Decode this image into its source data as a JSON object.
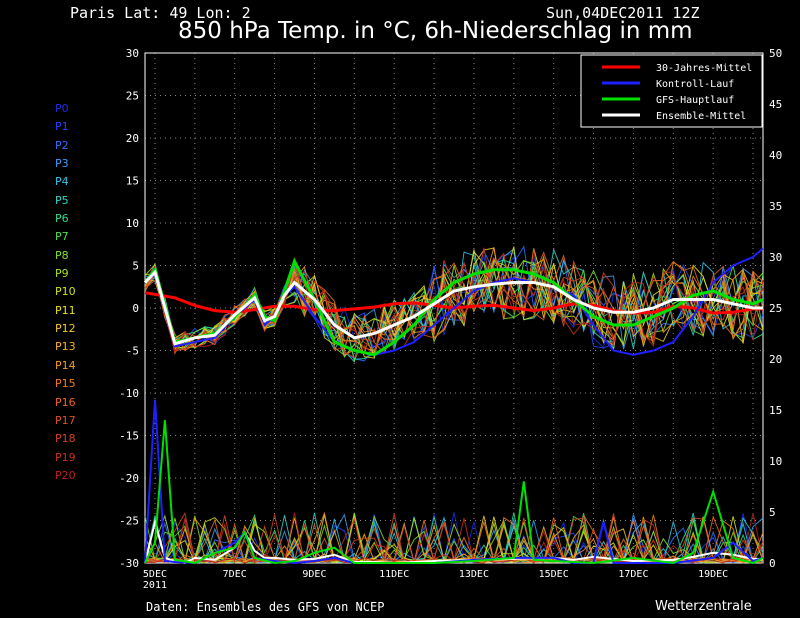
{
  "header": {
    "location": "Paris  Lat: 49 Lon: 2",
    "datetime": "Sun,04DEC2011 12Z",
    "title": "850 hPa Temp. in °C, 6h-Niederschlag in mm"
  },
  "footer": {
    "source": "Daten: Ensembles des GFS von NCEP",
    "brand": "Wetterzentrale"
  },
  "members": [
    {
      "label": "P0",
      "color": "#1a2ee8"
    },
    {
      "label": "P1",
      "color": "#2244ff"
    },
    {
      "label": "P2",
      "color": "#2d6cff"
    },
    {
      "label": "P3",
      "color": "#3a9cf5"
    },
    {
      "label": "P4",
      "color": "#33c3e6"
    },
    {
      "label": "P5",
      "color": "#2fd6c4"
    },
    {
      "label": "P6",
      "color": "#2fdc8c"
    },
    {
      "label": "P7",
      "color": "#4ee04a"
    },
    {
      "label": "P8",
      "color": "#7ee02c"
    },
    {
      "label": "P9",
      "color": "#a8e022"
    },
    {
      "label": "P10",
      "color": "#cce01e"
    },
    {
      "label": "P11",
      "color": "#e6e01e"
    },
    {
      "label": "P12",
      "color": "#f0c81e"
    },
    {
      "label": "P13",
      "color": "#f5b01e"
    },
    {
      "label": "P14",
      "color": "#f59a1e"
    },
    {
      "label": "P15",
      "color": "#f07e1e"
    },
    {
      "label": "P16",
      "color": "#eb681e"
    },
    {
      "label": "P17",
      "color": "#e0521e"
    },
    {
      "label": "P18",
      "color": "#d6401e"
    },
    {
      "label": "P19",
      "color": "#c8301e"
    },
    {
      "label": "P20",
      "color": "#b8201e"
    }
  ],
  "chart_data": {
    "type": "line",
    "title": "850 hPa Temp. in °C, 6h-Niederschlag in mm",
    "x_ticks": [
      "5DEC",
      "7DEC",
      "9DEC",
      "11DEC",
      "13DEC",
      "15DEC",
      "17DEC",
      "19DEC"
    ],
    "x_tick_sublabel": "2011",
    "x_range_days": [
      4.75,
      20.25
    ],
    "y_left_range": [
      -30,
      30
    ],
    "y_left_ticks": [
      -30,
      -25,
      -20,
      -15,
      -10,
      -5,
      0,
      5,
      10,
      15,
      20,
      25,
      30
    ],
    "y_right_range": [
      0,
      50
    ],
    "y_right_ticks": [
      0,
      5,
      10,
      15,
      20,
      25,
      30,
      35,
      40,
      45,
      50
    ],
    "grid": true,
    "legend": {
      "placement": "top-right",
      "entries": [
        {
          "name": "30-Jahres-Mittel",
          "color": "#ff0000"
        },
        {
          "name": "Kontroll-Lauf",
          "color": "#1e1eff"
        },
        {
          "name": "GFS-Hauptlauf",
          "color": "#00e000"
        },
        {
          "name": "Ensemble-Mittel",
          "color": "#ffffff"
        }
      ]
    },
    "temperature_series": [
      {
        "name": "30-Jahres-Mittel",
        "color": "#ff0000",
        "width": 3,
        "x": [
          4.75,
          5.5,
          6,
          6.5,
          7,
          7.5,
          8,
          8.5,
          9,
          9.5,
          10,
          10.5,
          11,
          11.5,
          12,
          12.5,
          13,
          13.5,
          14,
          14.5,
          15,
          15.5,
          16,
          16.5,
          17,
          17.5,
          18,
          18.5,
          19,
          19.5,
          20,
          20.25
        ],
        "y": [
          1.8,
          1.2,
          0.3,
          -0.3,
          -0.5,
          -0.2,
          0.2,
          0.2,
          -0.2,
          -0.3,
          -0.1,
          0.1,
          0.5,
          0.6,
          0.3,
          0.0,
          0.2,
          0.3,
          0.0,
          -0.3,
          0.0,
          0.5,
          0.3,
          -0.3,
          -0.6,
          -0.5,
          0.2,
          0.0,
          -0.6,
          -0.5,
          -0.1,
          -0.1
        ]
      },
      {
        "name": "Kontroll-Lauf",
        "color": "#1e1eff",
        "width": 2,
        "x": [
          4.75,
          5,
          5.5,
          6,
          6.5,
          7,
          7.5,
          7.75,
          8,
          8.25,
          8.5,
          9,
          9.5,
          10,
          10.5,
          11,
          11.5,
          12,
          12.5,
          13,
          13.5,
          14,
          14.5,
          15,
          15.5,
          16,
          16.5,
          17,
          17.5,
          18,
          18.5,
          19,
          19.5,
          20,
          20.25
        ],
        "y": [
          3,
          4,
          -4.5,
          -4,
          -3.5,
          -1,
          1,
          -2,
          -1,
          1.5,
          2.5,
          -1,
          -4,
          -5,
          -5.5,
          -5,
          -4,
          -2,
          0,
          2,
          3,
          3.5,
          3,
          2.5,
          1.5,
          -2,
          -5,
          -5.5,
          -5,
          -4,
          -1,
          3,
          5,
          6,
          7
        ]
      },
      {
        "name": "GFS-Hauptlauf",
        "color": "#00e000",
        "width": 3,
        "x": [
          4.75,
          5,
          5.5,
          6,
          6.5,
          7,
          7.5,
          7.75,
          8,
          8.25,
          8.5,
          9,
          9.5,
          10,
          10.5,
          11,
          11.5,
          12,
          12.5,
          13,
          13.5,
          14,
          14.5,
          15,
          15.5,
          16,
          16.5,
          17,
          17.5,
          18,
          18.5,
          19,
          19.5,
          20,
          20.25
        ],
        "y": [
          3,
          4.5,
          -4,
          -3.5,
          -3,
          -1,
          1.5,
          -1,
          -1.5,
          2,
          5.5,
          1,
          -4,
          -5,
          -5.5,
          -4,
          -2,
          1,
          3,
          4,
          4.5,
          4.5,
          4,
          3,
          1,
          -1,
          -2,
          -2,
          -1,
          0,
          1.5,
          2,
          1,
          0.5,
          1
        ]
      },
      {
        "name": "Ensemble-Mittel",
        "color": "#ffffff",
        "width": 3,
        "x": [
          4.75,
          5,
          5.5,
          6,
          6.5,
          7,
          7.5,
          7.75,
          8,
          8.25,
          8.5,
          9,
          9.5,
          10,
          10.5,
          11,
          11.5,
          12,
          12.5,
          13,
          13.5,
          14,
          14.5,
          15,
          15.5,
          16,
          16.5,
          17,
          17.5,
          18,
          18.5,
          19,
          19.5,
          20,
          20.25
        ],
        "y": [
          3,
          4.2,
          -4.2,
          -3.5,
          -3.2,
          -0.8,
          1.2,
          -1.5,
          -1,
          1.5,
          3,
          1,
          -2,
          -3.5,
          -3,
          -2,
          -1,
          0.5,
          2,
          2.5,
          2.8,
          3,
          3,
          2.5,
          1,
          0,
          -0.5,
          -0.5,
          0,
          1,
          1,
          1,
          0.5,
          0,
          0
        ]
      }
    ],
    "precip_series": [
      {
        "name": "Ensemble-Mittel",
        "color": "#ffffff",
        "x": [
          4.75,
          5,
          5.25,
          5.5,
          5.75,
          6,
          6.5,
          7,
          7.25,
          7.5,
          7.75,
          8,
          8.5,
          9,
          9.5,
          10,
          10.5,
          11,
          12,
          13,
          14,
          15,
          15.5,
          16,
          17,
          18,
          18.5,
          19,
          19.5,
          20,
          20.25
        ],
        "y": [
          0,
          4,
          0.5,
          0.2,
          0,
          0.5,
          0.3,
          1.5,
          3,
          1.2,
          0.5,
          0.5,
          0.3,
          0.4,
          0.8,
          0.1,
          0.1,
          0,
          0.2,
          0.3,
          0.4,
          0.5,
          0.3,
          0.6,
          0.2,
          0.3,
          0.6,
          1,
          0.8,
          0.4,
          0.4
        ]
      },
      {
        "name": "Kontroll-Lauf",
        "color": "#1e1eff",
        "x": [
          4.75,
          5,
          5.25,
          5.5,
          6,
          7,
          7.25,
          7.5,
          8,
          8.5,
          9,
          9.5,
          10,
          10.5,
          11,
          12,
          13,
          14,
          15,
          15.5,
          16,
          16.25,
          16.5,
          17,
          18,
          19,
          19.5,
          20,
          20.25
        ],
        "y": [
          0,
          16,
          0.2,
          0.1,
          0,
          2,
          3,
          0.5,
          0.2,
          0,
          0.2,
          0.5,
          0,
          0,
          0,
          0,
          0.3,
          0.5,
          0.5,
          0,
          0,
          4,
          0,
          0,
          0,
          0.5,
          2,
          0.2,
          0.5
        ]
      },
      {
        "name": "GFS-Hauptlauf",
        "color": "#00e000",
        "x": [
          4.75,
          5,
          5.25,
          5.5,
          6,
          6.5,
          7,
          7.25,
          7.5,
          8,
          8.5,
          9,
          9.5,
          10,
          11,
          12,
          13,
          14,
          14.25,
          14.5,
          15,
          16,
          17,
          18,
          18.5,
          19,
          19.5,
          20,
          20.25
        ],
        "y": [
          0,
          2,
          14,
          0.3,
          0,
          1,
          1.5,
          3,
          0.5,
          0,
          0.2,
          1,
          1.5,
          0,
          0,
          0,
          0.2,
          0.5,
          8,
          0.3,
          0.2,
          0,
          0.5,
          0,
          1,
          7,
          0.5,
          0,
          0.5
        ]
      }
    ]
  }
}
